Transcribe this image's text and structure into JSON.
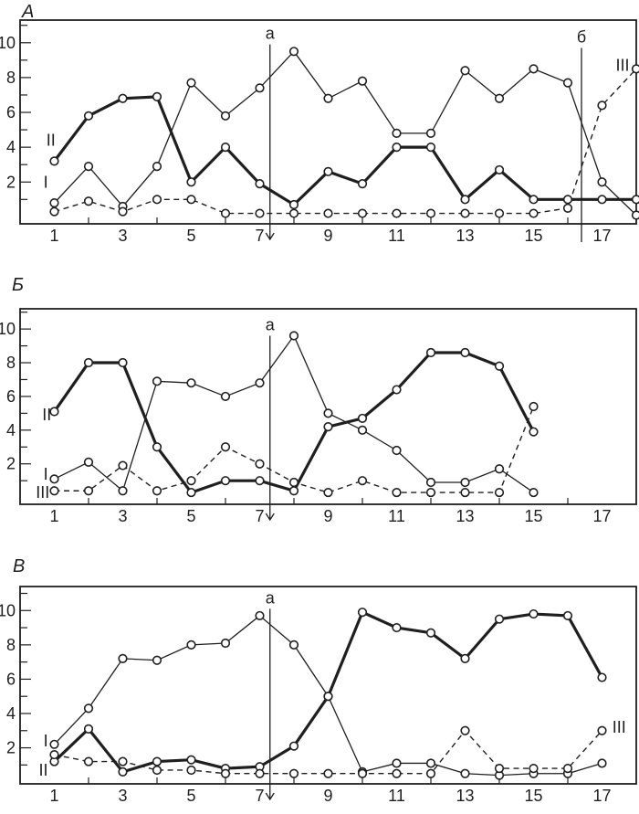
{
  "figure": {
    "background": "#ffffff",
    "ink_color": "#1f1f1f",
    "panel_labels": [
      "А",
      "Б",
      "В"
    ],
    "series_names": [
      "I",
      "II",
      "III"
    ]
  },
  "chart_data": [
    {
      "type": "line",
      "panel_label": "А",
      "grid": false,
      "x_range": [
        0,
        18
      ],
      "y_range": [
        -0.4,
        11.3
      ],
      "x_tick_labels": [
        1,
        3,
        5,
        7,
        9,
        11,
        13,
        15,
        17
      ],
      "x_minor_ticks": [
        2,
        4,
        6,
        8,
        10,
        12,
        14,
        16
      ],
      "y_ticks": [
        1,
        2,
        3,
        4,
        5,
        6,
        7,
        8,
        9,
        10,
        11
      ],
      "y_tick_labels": [
        2,
        4,
        6,
        8,
        10
      ],
      "x": [
        1,
        2,
        3,
        4,
        5,
        6,
        7,
        8,
        9,
        10,
        11,
        12,
        13,
        14,
        15,
        16,
        17,
        18
      ],
      "series": [
        {
          "name": "I",
          "line_style": "thin-solid",
          "marker": "open-circle",
          "label_at": {
            "x": 0.75,
            "y": 2.0
          },
          "values": [
            0.8,
            2.9,
            0.6,
            2.9,
            7.7,
            5.8,
            7.4,
            9.5,
            6.8,
            7.8,
            4.8,
            4.8,
            8.4,
            6.8,
            8.5,
            7.7,
            2.0,
            0.1
          ]
        },
        {
          "name": "II",
          "line_style": "thick-solid",
          "marker": "open-circle",
          "label_at": {
            "x": 0.9,
            "y": 4.4
          },
          "values": [
            3.2,
            5.8,
            6.8,
            6.9,
            2.0,
            4.0,
            1.9,
            0.7,
            2.6,
            1.9,
            4.0,
            4.0,
            1.0,
            2.7,
            1.0,
            1.0,
            1.0,
            1.0
          ]
        },
        {
          "name": "III",
          "line_style": "dashed",
          "marker": "open-circle",
          "label_at": {
            "x": 17.6,
            "y": 8.7
          },
          "values": [
            0.3,
            0.9,
            0.3,
            1.0,
            1.0,
            0.2,
            0.2,
            0.2,
            0.2,
            0.2,
            0.2,
            0.2,
            0.2,
            0.2,
            0.2,
            0.5,
            6.4,
            8.5
          ]
        }
      ],
      "vertical_markers": [
        {
          "label": "a",
          "x": 7.3,
          "y_top": 9.9,
          "arrow": true
        },
        {
          "label": "б",
          "x": 16.4,
          "y_top": 9.7,
          "arrow": false
        }
      ]
    },
    {
      "type": "line",
      "panel_label": "Б",
      "grid": false,
      "x_range": [
        0,
        18
      ],
      "y_range": [
        -0.4,
        11.2
      ],
      "x_tick_labels": [
        1,
        3,
        5,
        7,
        9,
        11,
        13,
        15,
        17
      ],
      "x_minor_ticks": [
        2,
        4,
        6,
        8,
        10,
        12,
        14,
        16
      ],
      "y_ticks": [
        1,
        2,
        3,
        4,
        5,
        6,
        7,
        8,
        9,
        10,
        11
      ],
      "y_tick_labels": [
        2,
        4,
        6,
        8,
        10
      ],
      "x": [
        1,
        2,
        3,
        4,
        5,
        6,
        7,
        8,
        9,
        10,
        11,
        12,
        13,
        14,
        15
      ],
      "series": [
        {
          "name": "I",
          "line_style": "thin-solid",
          "marker": "open-circle",
          "label_at": {
            "x": 0.75,
            "y": 1.4
          },
          "values": [
            1.1,
            2.1,
            0.4,
            6.9,
            6.8,
            6.0,
            6.8,
            9.6,
            5.0,
            4.0,
            2.8,
            0.9,
            0.9,
            1.7,
            0.3
          ]
        },
        {
          "name": "II",
          "line_style": "thick-solid",
          "marker": "open-circle",
          "label_at": {
            "x": 0.78,
            "y": 4.9
          },
          "values": [
            5.1,
            8.0,
            8.0,
            3.0,
            0.3,
            1.0,
            1.0,
            0.4,
            4.2,
            4.7,
            6.4,
            8.6,
            8.6,
            7.8,
            3.9
          ]
        },
        {
          "name": "III",
          "line_style": "dashed",
          "marker": "open-circle",
          "label_at": {
            "x": 0.66,
            "y": 0.3
          },
          "values": [
            0.4,
            0.4,
            1.9,
            0.4,
            1.0,
            3.0,
            2.0,
            0.9,
            0.3,
            1.0,
            0.3,
            0.3,
            0.3,
            0.3,
            5.4
          ]
        }
      ],
      "vertical_markers": [
        {
          "label": "a",
          "x": 7.3,
          "y_top": 9.6,
          "arrow": true
        }
      ]
    },
    {
      "type": "line",
      "panel_label": "В",
      "grid": false,
      "x_range": [
        0,
        18
      ],
      "y_range": [
        -0.1,
        11.4
      ],
      "x_tick_labels": [
        1,
        3,
        5,
        7,
        9,
        11,
        13,
        15,
        17
      ],
      "x_minor_ticks": [
        2,
        4,
        6,
        8,
        10,
        12,
        14,
        16
      ],
      "y_ticks": [
        1,
        2,
        3,
        4,
        5,
        6,
        7,
        8,
        9,
        10,
        11
      ],
      "y_tick_labels": [
        2,
        4,
        6,
        8,
        10
      ],
      "x": [
        1,
        2,
        3,
        4,
        5,
        6,
        7,
        8,
        9,
        10,
        11,
        12,
        13,
        14,
        15,
        16,
        17
      ],
      "series": [
        {
          "name": "I",
          "line_style": "thin-solid",
          "marker": "open-circle",
          "label_at": {
            "x": 0.75,
            "y": 2.4
          },
          "values": [
            2.2,
            4.3,
            7.2,
            7.1,
            8.0,
            8.1,
            9.7,
            8.0,
            5.0,
            0.6,
            1.1,
            1.1,
            0.5,
            0.4,
            0.5,
            0.5,
            1.1
          ]
        },
        {
          "name": "II",
          "line_style": "thick-solid",
          "marker": "open-circle",
          "label_at": {
            "x": 0.68,
            "y": 0.7
          },
          "values": [
            1.2,
            3.1,
            0.6,
            1.2,
            1.3,
            0.8,
            0.9,
            2.1,
            5.0,
            9.9,
            9.0,
            8.7,
            7.2,
            9.5,
            9.8,
            9.7,
            6.1
          ]
        },
        {
          "name": "III",
          "line_style": "dashed",
          "marker": "open-circle",
          "label_at": {
            "x": 17.5,
            "y": 3.2
          },
          "values": [
            1.6,
            1.2,
            1.2,
            0.7,
            0.7,
            0.5,
            0.5,
            0.5,
            0.5,
            0.5,
            0.5,
            0.5,
            3.0,
            0.8,
            0.8,
            0.8,
            3.0
          ]
        }
      ],
      "vertical_markers": [
        {
          "label": "a",
          "x": 7.3,
          "y_top": 10.1,
          "arrow": true
        }
      ]
    }
  ]
}
